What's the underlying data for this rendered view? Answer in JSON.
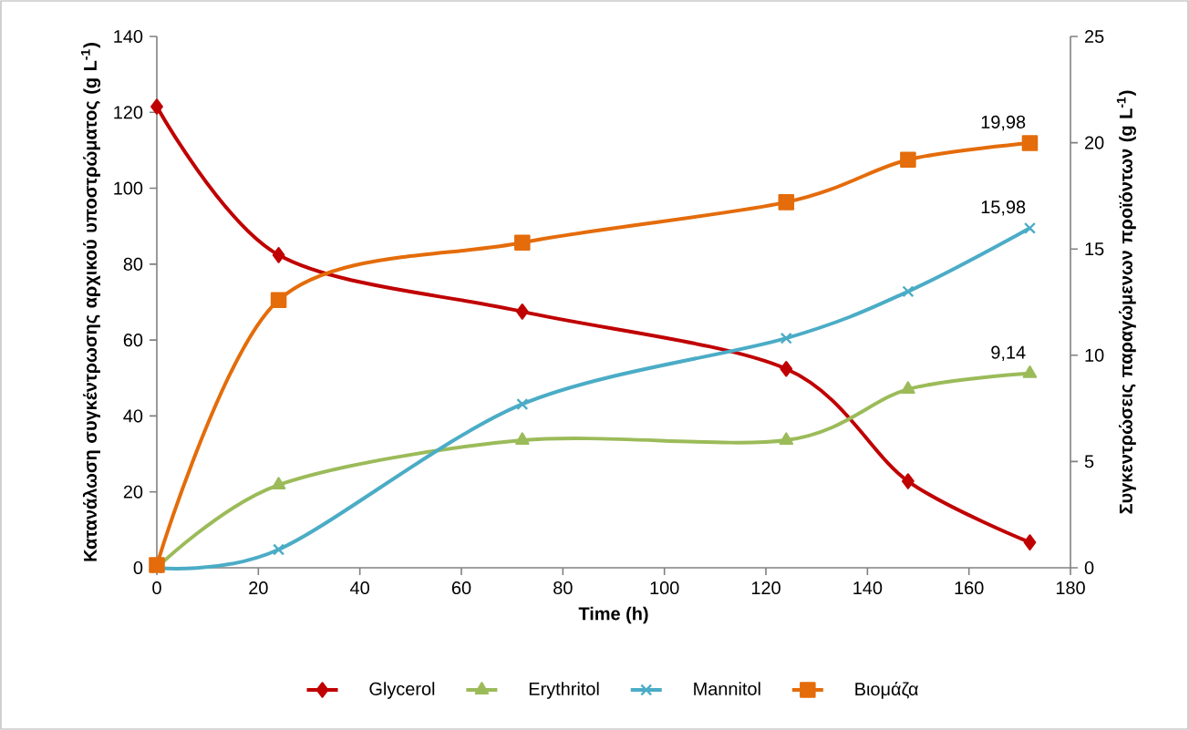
{
  "chart_data": {
    "type": "line",
    "xlabel": "Time (h)",
    "ylabel": "Κατανάλωση συγκέντρωσης αρχικού υποστρώματος (g L$^{-1}$)",
    "y2label": "Συγκεντρώσεις παραγώμενων προϊόντων (g L$^{-1}$)",
    "x": [
      0,
      24,
      72,
      124,
      148,
      172
    ],
    "xlim": [
      0,
      180
    ],
    "xticks": [
      0,
      20,
      40,
      60,
      80,
      100,
      120,
      140,
      160,
      180
    ],
    "ylim": [
      0,
      140
    ],
    "yticks": [
      0,
      20,
      40,
      60,
      80,
      100,
      120,
      140
    ],
    "y2lim": [
      0,
      25
    ],
    "y2ticks": [
      0,
      5,
      10,
      15,
      20,
      25
    ],
    "legend": "bottom",
    "grid": false,
    "line_style": "solid",
    "series": [
      {
        "name": "Glycerol",
        "color": "#c00000",
        "marker": "diamond",
        "axis": "y",
        "values": [
          121.5,
          82.4,
          67.5,
          52.4,
          22.8,
          6.7
        ]
      },
      {
        "name": "Erythritol",
        "color": "#9bbb59",
        "marker": "triangle",
        "axis": "y2",
        "values": [
          0,
          3.9,
          6.0,
          6.0,
          8.4,
          9.14
        ],
        "value_labels": [
          null,
          null,
          null,
          null,
          null,
          "9,14"
        ]
      },
      {
        "name": "Mannitol",
        "color": "#4bacc6",
        "marker": "cross",
        "axis": "y2",
        "values": [
          0,
          0.86,
          7.7,
          10.8,
          13.0,
          15.98
        ],
        "value_labels": [
          null,
          null,
          null,
          null,
          null,
          "15,98"
        ]
      },
      {
        "name": "Βιομάζα",
        "color": "#e46c0a",
        "marker": "square",
        "axis": "y2",
        "values": [
          0.13,
          12.6,
          15.3,
          17.2,
          19.2,
          19.98
        ],
        "value_labels": [
          null,
          null,
          null,
          null,
          null,
          "19,98"
        ]
      }
    ]
  }
}
